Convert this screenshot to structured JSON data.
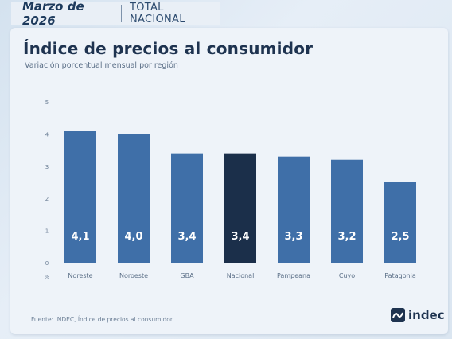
{
  "header": {
    "date": "Marzo de 2026",
    "scope": "TOTAL NACIONAL"
  },
  "card": {
    "title": "Índice de precios al consumidor",
    "subtitle": "Variación porcentual mensual por región",
    "source": "Fuente: INDEC, Índice de precios al consumidor.",
    "logo_text": "indec"
  },
  "colors": {
    "bar": "#3f6fa8",
    "highlight": "#1b2f4a",
    "label": "#ffffff"
  },
  "chart_data": {
    "type": "bar",
    "categories": [
      "Noreste",
      "Noroeste",
      "GBA",
      "Nacional",
      "Pampeana",
      "Cuyo",
      "Patagonia"
    ],
    "values": [
      4.1,
      4.0,
      3.4,
      3.4,
      3.3,
      3.2,
      2.5
    ],
    "data_labels": [
      "4,1",
      "4,0",
      "3,4",
      "3,4",
      "3,3",
      "3,2",
      "2,5"
    ],
    "highlight_category": "Nacional",
    "ylim": [
      0,
      5
    ],
    "yticks": [
      0,
      1,
      2,
      3,
      4,
      5
    ],
    "y_unit_label": "%",
    "grid": false
  }
}
